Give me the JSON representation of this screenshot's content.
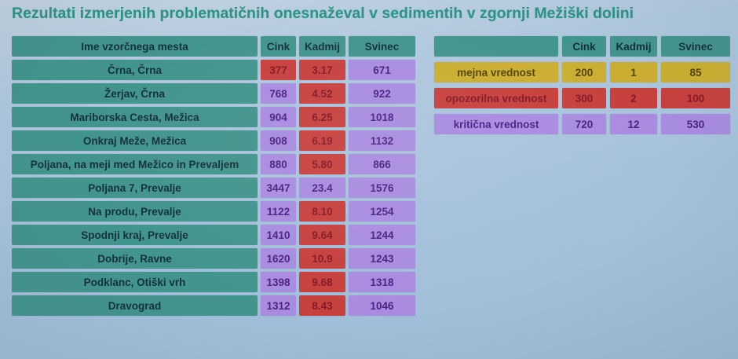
{
  "title": "Rezultati izmerjenih problematičnih onesnaževal v sedimentih v zgornji Mežiški dolini",
  "colors": {
    "title": "#2b9487",
    "background": "#a6c2db",
    "teal_header": "#42958d",
    "teal_text": "#14313a",
    "warning_bg": "#c7413e",
    "warning_text": "#841b26",
    "critical_bg": "#a98ce0",
    "critical_text": "#4a2385",
    "limit_bg": "#cbae31",
    "limit_text": "#554408"
  },
  "chart_data": [
    {
      "type": "table",
      "name": "measurements",
      "headers": [
        "Ime vzorčnega mesta",
        "Cink",
        "Kadmij",
        "Svinec"
      ],
      "rows": [
        {
          "site": "Črna, Črna",
          "values": [
            {
              "v": "377",
              "level": "warning"
            },
            {
              "v": "3.17",
              "level": "warning"
            },
            {
              "v": "671",
              "level": "critical"
            }
          ]
        },
        {
          "site": "Žerjav, Črna",
          "values": [
            {
              "v": "768",
              "level": "critical"
            },
            {
              "v": "4.52",
              "level": "warning"
            },
            {
              "v": "922",
              "level": "critical"
            }
          ]
        },
        {
          "site": "Mariborska Cesta, Mežica",
          "values": [
            {
              "v": "904",
              "level": "critical"
            },
            {
              "v": "6.25",
              "level": "warning"
            },
            {
              "v": "1018",
              "level": "critical"
            }
          ]
        },
        {
          "site": "Onkraj Meže, Mežica",
          "values": [
            {
              "v": "908",
              "level": "critical"
            },
            {
              "v": "6.19",
              "level": "warning"
            },
            {
              "v": "1132",
              "level": "critical"
            }
          ]
        },
        {
          "site": "Poljana, na meji med Mežico in Prevaljem",
          "values": [
            {
              "v": "880",
              "level": "critical"
            },
            {
              "v": "5.80",
              "level": "warning"
            },
            {
              "v": "866",
              "level": "critical"
            }
          ]
        },
        {
          "site": "Poljana 7, Prevalje",
          "values": [
            {
              "v": "3447",
              "level": "critical"
            },
            {
              "v": "23.4",
              "level": "critical"
            },
            {
              "v": "1576",
              "level": "critical"
            }
          ]
        },
        {
          "site": "Na produ, Prevalje",
          "values": [
            {
              "v": "1122",
              "level": "critical"
            },
            {
              "v": "8.10",
              "level": "warning"
            },
            {
              "v": "1254",
              "level": "critical"
            }
          ]
        },
        {
          "site": "Spodnji kraj, Prevalje",
          "values": [
            {
              "v": "1410",
              "level": "critical"
            },
            {
              "v": "9.64",
              "level": "warning"
            },
            {
              "v": "1244",
              "level": "critical"
            }
          ]
        },
        {
          "site": "Dobrije, Ravne",
          "values": [
            {
              "v": "1620",
              "level": "critical"
            },
            {
              "v": "10.9",
              "level": "warning"
            },
            {
              "v": "1243",
              "level": "critical"
            }
          ]
        },
        {
          "site": "Podklanc, Otiški vrh",
          "values": [
            {
              "v": "1398",
              "level": "critical"
            },
            {
              "v": "9.68",
              "level": "warning"
            },
            {
              "v": "1318",
              "level": "critical"
            }
          ]
        },
        {
          "site": "Dravograd",
          "values": [
            {
              "v": "1312",
              "level": "critical"
            },
            {
              "v": "8.43",
              "level": "warning"
            },
            {
              "v": "1046",
              "level": "critical"
            }
          ]
        }
      ]
    },
    {
      "type": "table",
      "name": "thresholds",
      "headers": [
        "",
        "Cink",
        "Kadmij",
        "Svinec"
      ],
      "rows": [
        {
          "label": "mejna vrednost",
          "level": "limit",
          "values": [
            "200",
            "1",
            "85"
          ]
        },
        {
          "label": "opozorilna vrednost",
          "level": "warning",
          "values": [
            "300",
            "2",
            "100"
          ]
        },
        {
          "label": "kritična vrednost",
          "level": "critical",
          "values": [
            "720",
            "12",
            "530"
          ]
        }
      ]
    }
  ]
}
